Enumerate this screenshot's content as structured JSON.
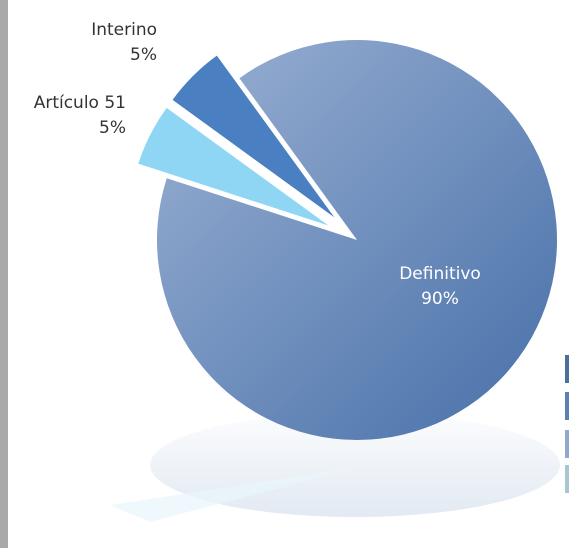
{
  "chart_data": {
    "type": "pie",
    "categories": [
      "Definitivo",
      "Artículo 51",
      "Interino"
    ],
    "values": [
      90,
      5,
      5
    ],
    "value_labels": [
      "90%",
      "5%",
      "5%"
    ],
    "colors": [
      "#5f82b6",
      "#8fd6f4",
      "#4a7fc2"
    ]
  }
}
